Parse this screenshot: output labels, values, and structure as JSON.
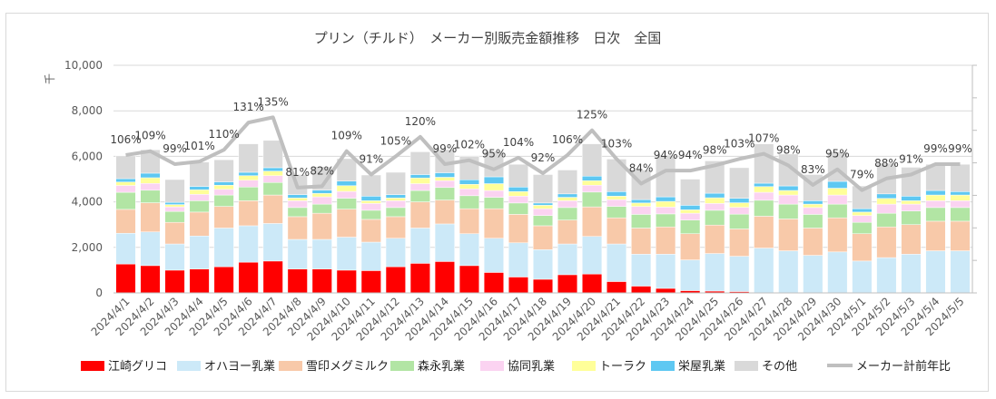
{
  "chart_data": {
    "type": "bar",
    "stacked": true,
    "title": "プリン（チルド）　メーカー別販売金額推移　日次　全国",
    "ylabel": "千",
    "ylim": [
      0,
      10000
    ],
    "yticks": [
      "0",
      "2,000",
      "4,000",
      "6,000",
      "8,000",
      "10,000"
    ],
    "ytick_values": [
      0,
      2000,
      4000,
      6000,
      8000,
      10000
    ],
    "grid": true,
    "legend_position": "bottom",
    "categories": [
      "2024/4/1",
      "2024/4/2",
      "2024/4/3",
      "2024/4/4",
      "2024/4/5",
      "2024/4/6",
      "2024/4/7",
      "2024/4/8",
      "2024/4/9",
      "2024/4/10",
      "2024/4/11",
      "2024/4/12",
      "2024/4/13",
      "2024/4/14",
      "2024/4/15",
      "2024/4/16",
      "2024/4/17",
      "2024/4/18",
      "2024/4/19",
      "2024/4/20",
      "2024/4/21",
      "2024/4/22",
      "2024/4/23",
      "2024/4/24",
      "2024/4/25",
      "2024/4/26",
      "2024/4/27",
      "2024/4/28",
      "2024/4/29",
      "2024/4/30",
      "2024/5/1",
      "2024/5/2",
      "2024/5/3",
      "2024/5/4",
      "2024/5/5"
    ],
    "series": [
      {
        "name": "江崎グリコ",
        "color": "#ff0000",
        "values": [
          1270,
          1200,
          1000,
          1050,
          1150,
          1350,
          1400,
          1050,
          1050,
          1000,
          980,
          1150,
          1300,
          1380,
          1200,
          900,
          700,
          600,
          800,
          830,
          500,
          300,
          200,
          100,
          80,
          60,
          0,
          0,
          0,
          0,
          0,
          0,
          0,
          0,
          0
        ]
      },
      {
        "name": "オハヨー乳業",
        "color": "#cce9f8",
        "values": [
          1350,
          1480,
          1150,
          1450,
          1700,
          1600,
          1650,
          1300,
          1300,
          1450,
          1250,
          1250,
          1550,
          1650,
          1400,
          1500,
          1500,
          1300,
          1350,
          1650,
          1650,
          1400,
          1500,
          1350,
          1650,
          1550,
          1970,
          1850,
          1650,
          1800,
          1400,
          1550,
          1700,
          1850,
          1850
        ]
      },
      {
        "name": "雪印メグミルク",
        "color": "#f8c9a9",
        "values": [
          1050,
          1280,
          950,
          1050,
          950,
          1100,
          1250,
          1000,
          1150,
          1230,
          1000,
          950,
          1150,
          1050,
          1100,
          1300,
          1250,
          1050,
          1050,
          1300,
          1150,
          1150,
          1200,
          1150,
          1250,
          1200,
          1400,
          1400,
          1200,
          1500,
          1200,
          1350,
          1300,
          1300,
          1300
        ]
      },
      {
        "name": "森永乳業",
        "color": "#b2e5a4",
        "values": [
          750,
          550,
          480,
          500,
          500,
          600,
          550,
          400,
          400,
          480,
          400,
          400,
          500,
          550,
          570,
          500,
          500,
          450,
          550,
          650,
          500,
          600,
          570,
          600,
          650,
          650,
          700,
          650,
          600,
          600,
          500,
          600,
          600,
          600,
          600
        ]
      },
      {
        "name": "協同乳業",
        "color": "#fbd3f1",
        "values": [
          300,
          300,
          200,
          280,
          250,
          300,
          300,
          300,
          320,
          300,
          300,
          300,
          300,
          300,
          300,
          300,
          300,
          300,
          300,
          300,
          300,
          350,
          300,
          300,
          300,
          300,
          350,
          400,
          300,
          400,
          300,
          400,
          300,
          300,
          300
        ]
      },
      {
        "name": "トーラク",
        "color": "#ffff99",
        "values": [
          150,
          250,
          100,
          200,
          180,
          200,
          200,
          120,
          150,
          250,
          120,
          120,
          250,
          150,
          200,
          300,
          200,
          150,
          150,
          200,
          150,
          150,
          250,
          150,
          250,
          200,
          250,
          200,
          150,
          300,
          150,
          250,
          150,
          250,
          250
        ]
      },
      {
        "name": "栄屋乳業",
        "color": "#5ec8f2",
        "values": [
          150,
          200,
          100,
          150,
          150,
          150,
          150,
          150,
          150,
          200,
          200,
          150,
          150,
          200,
          200,
          300,
          200,
          100,
          150,
          200,
          200,
          150,
          200,
          200,
          200,
          200,
          150,
          200,
          150,
          300,
          150,
          200,
          200,
          200,
          150
        ]
      },
      {
        "name": "その他",
        "color": "#d9d9d9",
        "values": [
          1000,
          1030,
          1000,
          1070,
          970,
          1250,
          1200,
          880,
          1030,
          990,
          930,
          980,
          1000,
          1020,
          1030,
          1130,
          1000,
          1250,
          1050,
          1420,
          1430,
          1300,
          1830,
          1150,
          1420,
          1340,
          1730,
          1400,
          1150,
          1300,
          1000,
          1350,
          1270,
          1150,
          1200
        ]
      }
    ],
    "line_series": {
      "name": "メーカー計前年比",
      "color": "#bfbfbf",
      "values": [
        106,
        109,
        99,
        101,
        110,
        131,
        135,
        81,
        82,
        109,
        91,
        105,
        120,
        99,
        102,
        95,
        104,
        92,
        106,
        125,
        103,
        84,
        94,
        94,
        98,
        103,
        107,
        98,
        83,
        95,
        79,
        88,
        91,
        99,
        99
      ],
      "labels": [
        "106%",
        "109%",
        "99%",
        "101%",
        "110%",
        "131%",
        "135%",
        "81%",
        "82%",
        "109%",
        "91%",
        "105%",
        "120%",
        "99%",
        "102%",
        "95%",
        "104%",
        "92%",
        "106%",
        "125%",
        "103%",
        "84%",
        "94%",
        "94%",
        "98%",
        "103%",
        "107%",
        "98%",
        "83%",
        "95%",
        "79%",
        "88%",
        "91%",
        "99%",
        "99%"
      ]
    }
  }
}
